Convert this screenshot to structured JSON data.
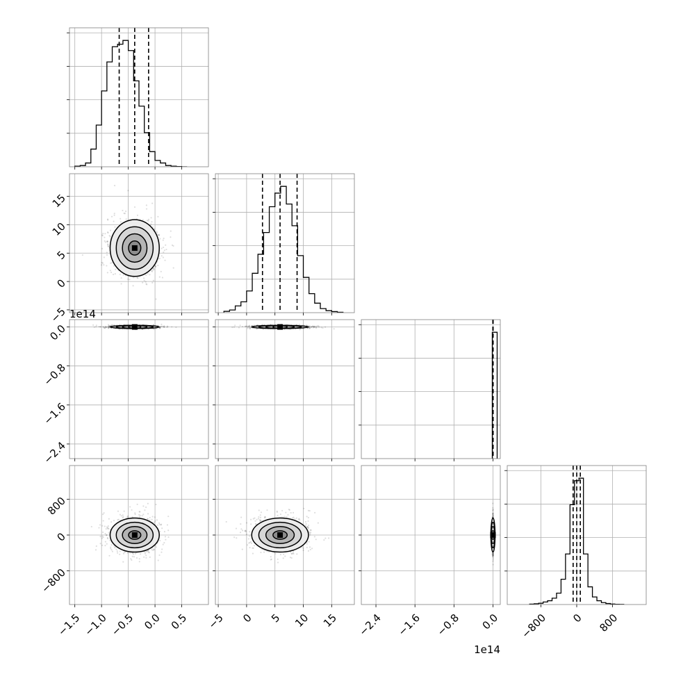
{
  "chart_data": {
    "type": "corner",
    "n_params": 4,
    "grid": true,
    "colors": {
      "line": "#000000",
      "grid": "#b0b0b0",
      "scatter": "#000000",
      "frame": "#808080"
    },
    "axes": [
      {
        "range": [
          -1.6,
          1.0
        ],
        "ticks": [
          -1.5,
          -1.0,
          -0.5,
          0.0,
          0.5
        ],
        "tick_labels": [
          "−1.5",
          "−1.0",
          "−0.5",
          "0.0",
          "0.5"
        ],
        "offset": ""
      },
      {
        "range": [
          -5.5,
          19.0
        ],
        "ticks": [
          -5,
          0,
          5,
          10,
          15
        ],
        "tick_labels": [
          "−5",
          "0",
          "5",
          "10",
          "15"
        ],
        "offset": ""
      },
      {
        "range": [
          -2.7,
          0.15
        ],
        "ticks": [
          -2.4,
          -1.6,
          -0.8,
          0.0
        ],
        "tick_labels": [
          "−2.4",
          "−1.6",
          "−0.8",
          "0.0"
        ],
        "offset": "1e14"
      },
      {
        "range": [
          -1550,
          1550
        ],
        "ticks": [
          -800,
          0,
          800
        ],
        "tick_labels": [
          "−800",
          "0",
          "800"
        ],
        "offset": ""
      }
    ],
    "marginals": [
      {
        "bins": [
          -1.45,
          -1.35,
          -1.25,
          -1.15,
          -1.05,
          -0.95,
          -0.85,
          -0.75,
          -0.65,
          -0.55,
          -0.45,
          -0.35,
          -0.25,
          -0.15,
          -0.05,
          0.05,
          0.15,
          0.25,
          0.35,
          0.45,
          0.55
        ],
        "counts": [
          0.5,
          1,
          3,
          14,
          33,
          60,
          83,
          95,
          97,
          100,
          92,
          68,
          48,
          27,
          12,
          5,
          3,
          1,
          0.5,
          0.2,
          0
        ],
        "quantiles": [
          -0.67,
          -0.38,
          -0.12
        ]
      },
      {
        "bins": [
          -3.5,
          -2.5,
          -1.5,
          -0.5,
          0.5,
          1.5,
          2.5,
          3.5,
          4.5,
          5.5,
          6.5,
          7.5,
          8.5,
          9.5,
          10.5,
          11.5,
          12.5,
          13.5,
          14.5,
          15.5,
          16.5
        ],
        "counts": [
          1,
          2,
          5,
          8,
          16,
          29,
          43,
          59,
          78,
          88,
          93,
          80,
          64,
          42,
          26,
          14,
          7,
          3,
          1.5,
          0.8,
          0.3
        ],
        "quantiles": [
          2.8,
          5.9,
          8.9
        ]
      },
      {
        "bins": [
          0.0
        ],
        "counts": [
          100
        ],
        "quantiles": [
          -0.003,
          0.0,
          0.003
        ]
      },
      {
        "bins": [
          -1000,
          -900,
          -800,
          -700,
          -600,
          -500,
          -400,
          -300,
          -200,
          -100,
          0,
          100,
          200,
          300,
          400,
          500,
          600,
          700,
          800,
          900,
          1000
        ],
        "counts": [
          0.3,
          0.6,
          1,
          2,
          3,
          5,
          9,
          20,
          40,
          79,
          98,
          100,
          40,
          14,
          6,
          3,
          1.5,
          0.8,
          0.4,
          0.2,
          0.1
        ],
        "quantiles": [
          -80,
          0,
          80
        ]
      }
    ],
    "pairs": [
      {
        "i": 1,
        "j": 0,
        "mean": [
          -0.38,
          5.9
        ],
        "sd": [
          0.23,
          2.5
        ],
        "extent": [
          [
            -1.35,
            0.75
          ],
          [
            -4.5,
            17.5
          ]
        ]
      },
      {
        "i": 2,
        "j": 0,
        "mean": [
          -0.38,
          0.0
        ],
        "sd": [
          0.23,
          0.012
        ],
        "extent": [
          [
            -1.4,
            0.7
          ],
          [
            -0.07,
            0.03
          ]
        ]
      },
      {
        "i": 2,
        "j": 1,
        "mean": [
          5.9,
          0.0
        ],
        "sd": [
          2.5,
          0.012
        ],
        "extent": [
          [
            -4.0,
            18.0
          ],
          [
            -0.07,
            0.03
          ]
        ]
      },
      {
        "i": 3,
        "j": 0,
        "mean": [
          -0.38,
          0.0
        ],
        "sd": [
          0.23,
          190
        ],
        "extent": [
          [
            -1.45,
            0.75
          ],
          [
            -950,
            850
          ]
        ]
      },
      {
        "i": 3,
        "j": 1,
        "mean": [
          5.9,
          0.0
        ],
        "sd": [
          2.5,
          190
        ],
        "extent": [
          [
            -4.5,
            17.5
          ],
          [
            -950,
            850
          ]
        ]
      },
      {
        "i": 3,
        "j": 2,
        "mean": [
          0.0,
          0.0
        ],
        "sd": [
          0.004,
          190
        ],
        "extent": [
          [
            -0.3,
            0.05
          ],
          [
            -950,
            850
          ]
        ]
      }
    ]
  }
}
